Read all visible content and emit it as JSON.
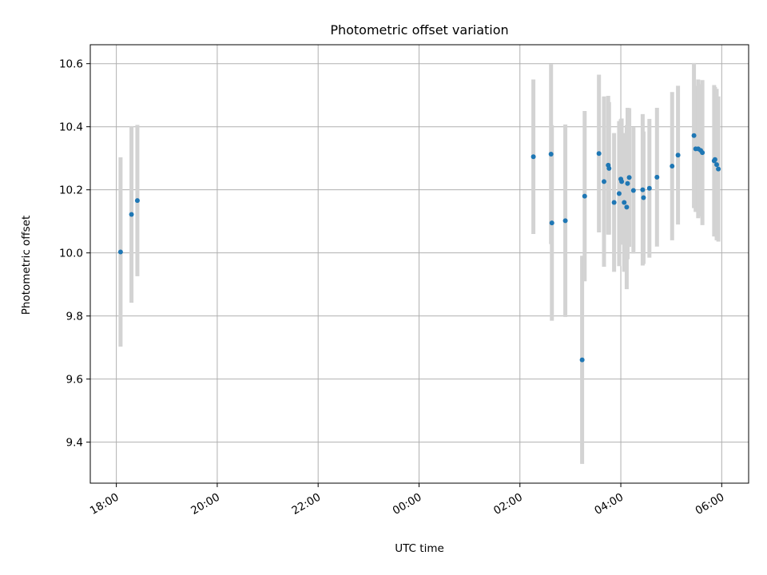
{
  "chart_data": {
    "type": "scatter",
    "title": "Photometric offset variation",
    "xlabel": "UTC time",
    "ylabel": "Photometric offset",
    "x_axis_type": "time",
    "x_start_day": "2000-01-01",
    "xlim": [
      "17:29",
      "06:32"
    ],
    "ylim": [
      9.27,
      10.66
    ],
    "grid": true,
    "x_ticks": [
      "18:00",
      "20:00",
      "22:00",
      "00:00",
      "02:00",
      "04:00",
      "06:00"
    ],
    "y_ticks": [
      9.4,
      9.6,
      9.8,
      10.0,
      10.2,
      10.4,
      10.6
    ],
    "y_tick_labels": [
      "9.4",
      "9.6",
      "9.8",
      "10.0",
      "10.2",
      "10.4",
      "10.6"
    ],
    "point_color": "#1f77b4",
    "errorbar_color": "#d3d3d3",
    "points": [
      {
        "t": "18:05",
        "y": 10.003,
        "err": 0.3
      },
      {
        "t": "18:18",
        "y": 10.122,
        "err": 0.28
      },
      {
        "t": "18:25",
        "y": 10.166,
        "err": 0.24
      },
      {
        "t": "02:16",
        "y": 10.305,
        "err": 0.245
      },
      {
        "t": "02:37",
        "y": 10.313,
        "err": 0.285
      },
      {
        "t": "02:38",
        "y": 10.095,
        "err": 0.31
      },
      {
        "t": "02:54",
        "y": 10.102,
        "err": 0.305
      },
      {
        "t": "03:14",
        "y": 9.661,
        "err": 0.33
      },
      {
        "t": "03:17",
        "y": 10.18,
        "err": 0.27
      },
      {
        "t": "03:34",
        "y": 10.315,
        "err": 0.25
      },
      {
        "t": "03:40",
        "y": 10.226,
        "err": 0.27
      },
      {
        "t": "03:45",
        "y": 10.278,
        "err": 0.22
      },
      {
        "t": "03:46",
        "y": 10.268,
        "err": 0.21
      },
      {
        "t": "03:52",
        "y": 10.16,
        "err": 0.22
      },
      {
        "t": "03:58",
        "y": 10.188,
        "err": 0.23
      },
      {
        "t": "04:00",
        "y": 10.234,
        "err": 0.19
      },
      {
        "t": "04:01",
        "y": 10.226,
        "err": 0.2
      },
      {
        "t": "04:04",
        "y": 10.16,
        "err": 0.22
      },
      {
        "t": "04:07",
        "y": 10.145,
        "err": 0.26
      },
      {
        "t": "04:08",
        "y": 10.22,
        "err": 0.24
      },
      {
        "t": "04:10",
        "y": 10.239,
        "err": 0.22
      },
      {
        "t": "04:15",
        "y": 10.198,
        "err": 0.2
      },
      {
        "t": "04:26",
        "y": 10.2,
        "err": 0.24
      },
      {
        "t": "04:27",
        "y": 10.175,
        "err": 0.21
      },
      {
        "t": "04:34",
        "y": 10.205,
        "err": 0.22
      },
      {
        "t": "04:43",
        "y": 10.24,
        "err": 0.22
      },
      {
        "t": "05:01",
        "y": 10.275,
        "err": 0.235
      },
      {
        "t": "05:08",
        "y": 10.31,
        "err": 0.22
      },
      {
        "t": "05:27",
        "y": 10.372,
        "err": 0.23
      },
      {
        "t": "05:29",
        "y": 10.33,
        "err": 0.2
      },
      {
        "t": "05:32",
        "y": 10.33,
        "err": 0.22
      },
      {
        "t": "05:35",
        "y": 10.325,
        "err": 0.21
      },
      {
        "t": "05:37",
        "y": 10.318,
        "err": 0.23
      },
      {
        "t": "05:51",
        "y": 10.292,
        "err": 0.24
      },
      {
        "t": "05:52",
        "y": 10.296,
        "err": 0.23
      },
      {
        "t": "05:54",
        "y": 10.28,
        "err": 0.24
      },
      {
        "t": "05:56",
        "y": 10.266,
        "err": 0.23
      }
    ]
  }
}
